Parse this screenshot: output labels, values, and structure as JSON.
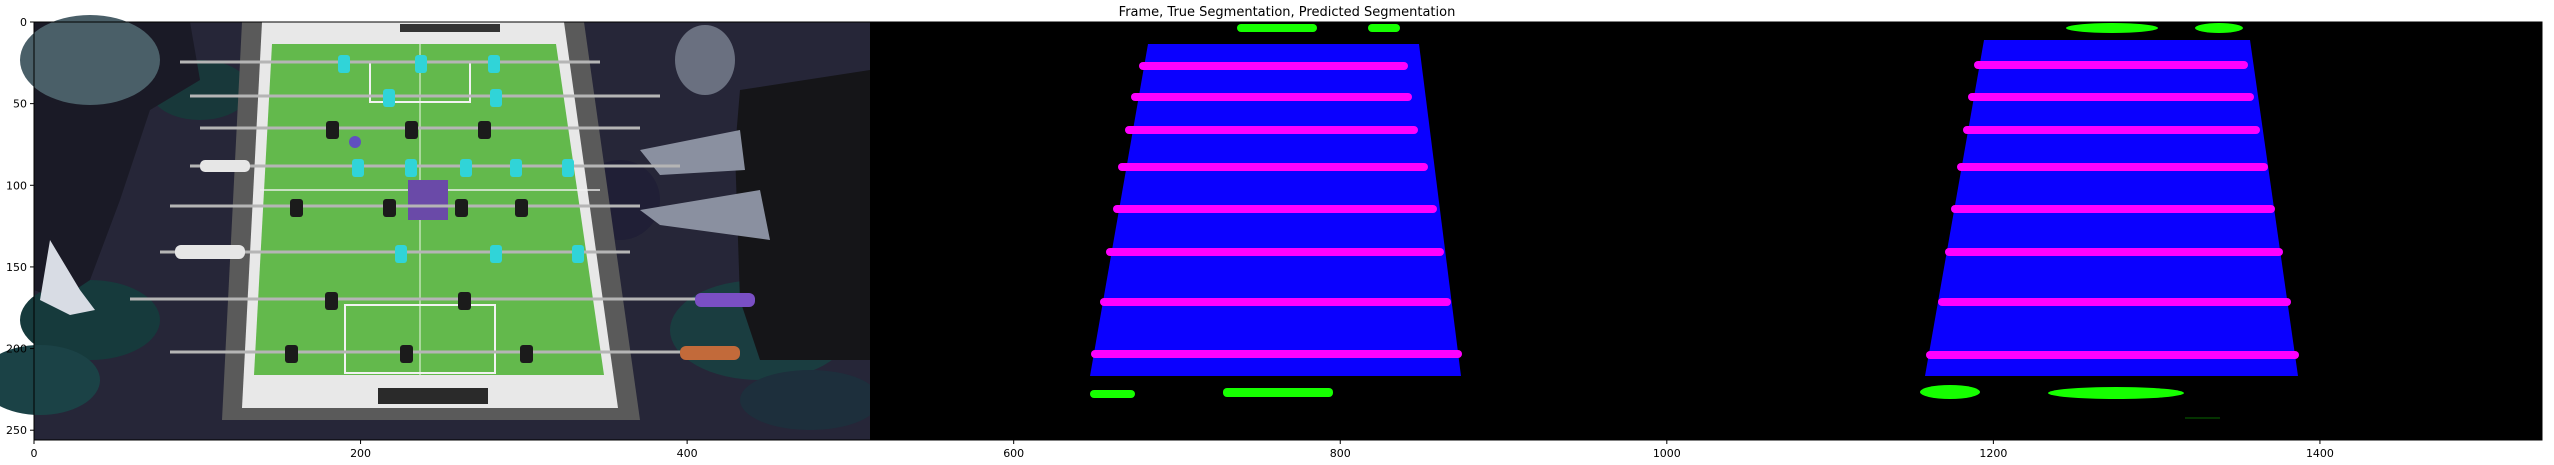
{
  "chart_data": {
    "type": "image",
    "title": "Frame, True Segmentation, Predicted Segmentation",
    "xlim": [
      0,
      1536
    ],
    "ylim": [
      256,
      0
    ],
    "x_ticks": [
      0,
      200,
      400,
      600,
      800,
      1000,
      1200,
      1400
    ],
    "y_ticks": [
      0,
      50,
      100,
      150,
      200,
      250
    ],
    "panels": [
      "Frame",
      "True Segmentation",
      "Predicted Segmentation"
    ],
    "panel_width": 512,
    "segmentation_classes": [
      {
        "name": "table",
        "color": "#0a00ff"
      },
      {
        "name": "rods",
        "color": "#ff00ff"
      },
      {
        "name": "ball-and-objects",
        "color": "#16ff00"
      }
    ],
    "colors": {
      "background": "#000000",
      "field": "#5fb84a",
      "blue_players": "#30d4d8",
      "black_players": "#1b1b1b"
    }
  }
}
